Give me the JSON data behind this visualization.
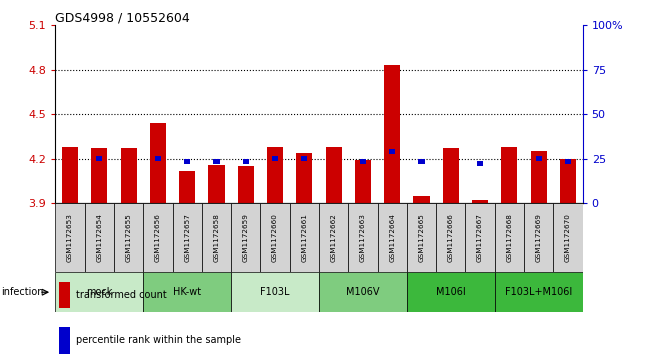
{
  "title": "GDS4998 / 10552604",
  "samples": [
    "GSM1172653",
    "GSM1172654",
    "GSM1172655",
    "GSM1172656",
    "GSM1172657",
    "GSM1172658",
    "GSM1172659",
    "GSM1172660",
    "GSM1172661",
    "GSM1172662",
    "GSM1172663",
    "GSM1172664",
    "GSM1172665",
    "GSM1172666",
    "GSM1172667",
    "GSM1172668",
    "GSM1172669",
    "GSM1172670"
  ],
  "red_values": [
    4.28,
    4.27,
    4.27,
    4.44,
    4.12,
    4.16,
    4.15,
    4.28,
    4.24,
    4.28,
    4.19,
    4.83,
    3.95,
    4.27,
    3.92,
    4.28,
    4.25,
    4.2
  ],
  "blue_values": [
    null,
    4.2,
    null,
    4.2,
    4.18,
    4.18,
    4.18,
    4.2,
    4.2,
    null,
    4.18,
    4.25,
    4.18,
    null,
    4.17,
    null,
    4.2,
    4.18
  ],
  "ylim_left": [
    3.9,
    5.1
  ],
  "ylim_right": [
    0,
    100
  ],
  "yticks_left": [
    3.9,
    4.2,
    4.5,
    4.8,
    5.1
  ],
  "yticks_right": [
    0,
    25,
    50,
    75,
    100
  ],
  "ytick_labels_left": [
    "3.9",
    "4.2",
    "4.5",
    "4.8",
    "5.1"
  ],
  "ytick_labels_right": [
    "0",
    "25",
    "50",
    "75",
    "100%"
  ],
  "groups": [
    {
      "label": "mock",
      "start": 0,
      "end": 2,
      "color": "#c8eac8"
    },
    {
      "label": "HK-wt",
      "start": 3,
      "end": 5,
      "color": "#7fcc7f"
    },
    {
      "label": "F103L",
      "start": 6,
      "end": 8,
      "color": "#c8eac8"
    },
    {
      "label": "M106V",
      "start": 9,
      "end": 11,
      "color": "#7fcc7f"
    },
    {
      "label": "M106I",
      "start": 12,
      "end": 14,
      "color": "#3cb83c"
    },
    {
      "label": "F103L+M106I",
      "start": 15,
      "end": 17,
      "color": "#3cb83c"
    }
  ],
  "bar_color": "#cc0000",
  "blue_color": "#0000cc",
  "base": 3.9,
  "bar_width": 0.55,
  "background_color": "#ffffff",
  "ylabel_left_color": "#cc0000",
  "ylabel_right_color": "#0000cc",
  "legend_items": [
    {
      "color": "#cc0000",
      "label": "transformed count"
    },
    {
      "color": "#0000cc",
      "label": "percentile rank within the sample"
    }
  ],
  "infection_label": "infection",
  "sample_box_color": "#d3d3d3",
  "dotted_lines": [
    4.2,
    4.5,
    4.8
  ]
}
